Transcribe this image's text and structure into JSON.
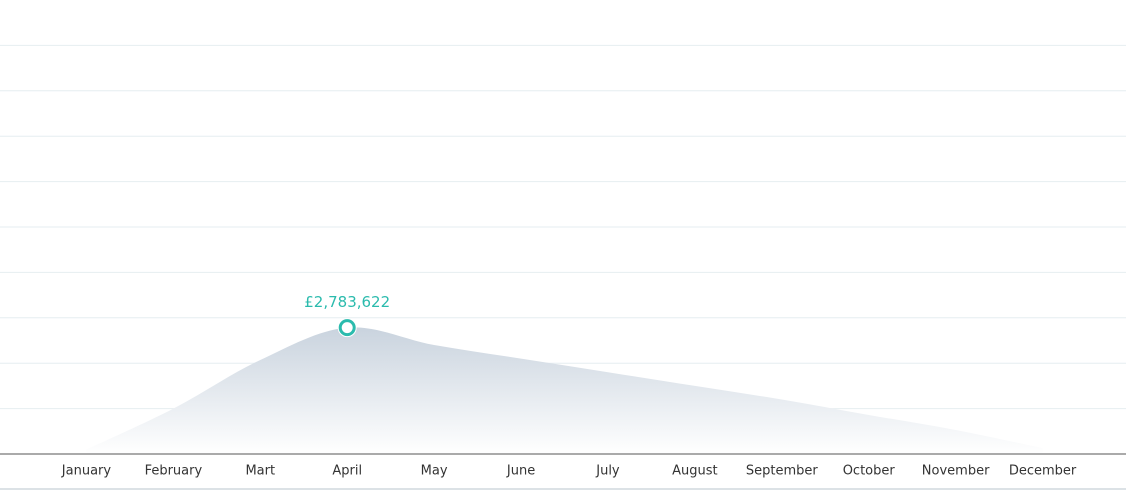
{
  "chart_data": {
    "type": "area",
    "categories": [
      "January",
      "February",
      "Mart",
      "April",
      "May",
      "June",
      "July",
      "August",
      "September",
      "October",
      "November",
      "December"
    ],
    "values": [
      100000,
      1000000,
      2070000,
      2783622,
      2400000,
      2100000,
      1800000,
      1500000,
      1200000,
      860000,
      530000,
      130000
    ],
    "value_labels": [
      null,
      null,
      null,
      "£2,783,622",
      null,
      null,
      null,
      null,
      null,
      null,
      null,
      null
    ],
    "color": "#c9d3de",
    "marker_color": "#2bbbad",
    "ylim": [
      0,
      10000000
    ],
    "yticks": [
      0,
      1000000,
      2000000,
      3000000,
      4000000,
      5000000,
      6000000,
      7000000,
      8000000,
      9000000,
      10000000
    ],
    "grid": true
  }
}
